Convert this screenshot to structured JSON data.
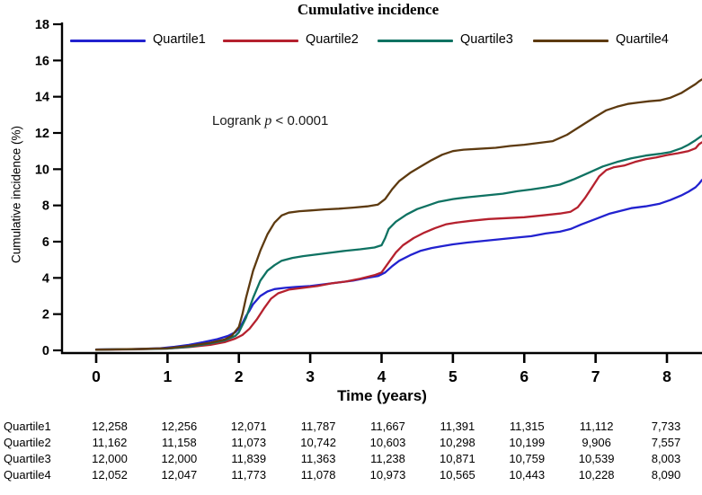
{
  "chart": {
    "title": "Cumulative incidence",
    "ylabel": "Cumulative incidence (%)",
    "xlabel": "Time (years)",
    "annotation": {
      "prefix": "Logrank ",
      "italic": "p",
      "suffix": " < 0.0001"
    }
  },
  "chart_data": {
    "type": "line",
    "title": "Cumulative incidence",
    "xlabel": "Time (years)",
    "ylabel": "Cumulative incidence (%)",
    "xlim": [
      0,
      8.5
    ],
    "ylim": [
      0,
      18
    ],
    "x_ticks": [
      0,
      1,
      2,
      3,
      4,
      5,
      6,
      7,
      8
    ],
    "y_ticks": [
      0,
      2,
      4,
      6,
      8,
      10,
      12,
      14,
      16,
      18
    ],
    "grid": "off",
    "legend_position": "top-inside",
    "annotation": "Logrank p < 0.0001",
    "series": [
      {
        "name": "Quartile1",
        "color": "#2222cf",
        "points": [
          [
            0,
            0.05
          ],
          [
            0.5,
            0.07
          ],
          [
            0.9,
            0.12
          ],
          [
            1.1,
            0.2
          ],
          [
            1.3,
            0.3
          ],
          [
            1.5,
            0.45
          ],
          [
            1.7,
            0.62
          ],
          [
            1.85,
            0.8
          ],
          [
            1.95,
            1.0
          ],
          [
            2.0,
            1.2
          ],
          [
            2.05,
            1.5
          ],
          [
            2.1,
            1.9
          ],
          [
            2.15,
            2.2
          ],
          [
            2.2,
            2.55
          ],
          [
            2.3,
            3.0
          ],
          [
            2.4,
            3.25
          ],
          [
            2.5,
            3.38
          ],
          [
            2.65,
            3.45
          ],
          [
            2.8,
            3.5
          ],
          [
            3.0,
            3.55
          ],
          [
            3.2,
            3.65
          ],
          [
            3.4,
            3.75
          ],
          [
            3.6,
            3.85
          ],
          [
            3.8,
            4.0
          ],
          [
            3.95,
            4.1
          ],
          [
            4.05,
            4.3
          ],
          [
            4.15,
            4.65
          ],
          [
            4.25,
            4.95
          ],
          [
            4.4,
            5.25
          ],
          [
            4.55,
            5.5
          ],
          [
            4.7,
            5.65
          ],
          [
            4.85,
            5.75
          ],
          [
            5.0,
            5.85
          ],
          [
            5.2,
            5.95
          ],
          [
            5.45,
            6.05
          ],
          [
            5.7,
            6.15
          ],
          [
            5.95,
            6.25
          ],
          [
            6.1,
            6.3
          ],
          [
            6.3,
            6.45
          ],
          [
            6.5,
            6.55
          ],
          [
            6.65,
            6.7
          ],
          [
            6.8,
            6.95
          ],
          [
            7.0,
            7.25
          ],
          [
            7.2,
            7.55
          ],
          [
            7.35,
            7.7
          ],
          [
            7.5,
            7.85
          ],
          [
            7.7,
            7.95
          ],
          [
            7.9,
            8.1
          ],
          [
            8.05,
            8.3
          ],
          [
            8.2,
            8.55
          ],
          [
            8.3,
            8.75
          ],
          [
            8.4,
            9.0
          ],
          [
            8.45,
            9.2
          ],
          [
            8.49,
            9.4
          ]
        ]
      },
      {
        "name": "Quartile2",
        "color": "#b5212e",
        "points": [
          [
            0,
            0.03
          ],
          [
            0.6,
            0.06
          ],
          [
            1.0,
            0.1
          ],
          [
            1.3,
            0.18
          ],
          [
            1.6,
            0.3
          ],
          [
            1.8,
            0.45
          ],
          [
            1.95,
            0.65
          ],
          [
            2.05,
            0.85
          ],
          [
            2.15,
            1.2
          ],
          [
            2.25,
            1.7
          ],
          [
            2.35,
            2.3
          ],
          [
            2.45,
            2.85
          ],
          [
            2.55,
            3.15
          ],
          [
            2.7,
            3.35
          ],
          [
            2.9,
            3.45
          ],
          [
            3.1,
            3.55
          ],
          [
            3.3,
            3.7
          ],
          [
            3.5,
            3.8
          ],
          [
            3.7,
            3.95
          ],
          [
            3.9,
            4.15
          ],
          [
            4.0,
            4.3
          ],
          [
            4.1,
            4.85
          ],
          [
            4.2,
            5.4
          ],
          [
            4.3,
            5.8
          ],
          [
            4.45,
            6.2
          ],
          [
            4.6,
            6.5
          ],
          [
            4.75,
            6.75
          ],
          [
            4.9,
            6.95
          ],
          [
            5.05,
            7.05
          ],
          [
            5.25,
            7.15
          ],
          [
            5.5,
            7.25
          ],
          [
            5.75,
            7.3
          ],
          [
            6.0,
            7.35
          ],
          [
            6.25,
            7.45
          ],
          [
            6.5,
            7.55
          ],
          [
            6.65,
            7.65
          ],
          [
            6.75,
            7.9
          ],
          [
            6.85,
            8.4
          ],
          [
            6.95,
            9.0
          ],
          [
            7.05,
            9.6
          ],
          [
            7.15,
            9.95
          ],
          [
            7.25,
            10.1
          ],
          [
            7.4,
            10.2
          ],
          [
            7.55,
            10.4
          ],
          [
            7.7,
            10.55
          ],
          [
            7.85,
            10.65
          ],
          [
            8.0,
            10.78
          ],
          [
            8.15,
            10.88
          ],
          [
            8.3,
            11.0
          ],
          [
            8.4,
            11.15
          ],
          [
            8.45,
            11.38
          ],
          [
            8.49,
            11.48
          ]
        ]
      },
      {
        "name": "Quartile3",
        "color": "#0f7262",
        "points": [
          [
            0,
            0.04
          ],
          [
            0.6,
            0.07
          ],
          [
            1.0,
            0.1
          ],
          [
            1.3,
            0.2
          ],
          [
            1.6,
            0.38
          ],
          [
            1.8,
            0.55
          ],
          [
            1.95,
            0.8
          ],
          [
            2.0,
            1.0
          ],
          [
            2.1,
            1.8
          ],
          [
            2.2,
            2.9
          ],
          [
            2.3,
            3.85
          ],
          [
            2.4,
            4.4
          ],
          [
            2.5,
            4.7
          ],
          [
            2.6,
            4.95
          ],
          [
            2.75,
            5.1
          ],
          [
            2.9,
            5.2
          ],
          [
            3.1,
            5.3
          ],
          [
            3.3,
            5.4
          ],
          [
            3.5,
            5.5
          ],
          [
            3.7,
            5.58
          ],
          [
            3.9,
            5.68
          ],
          [
            4.0,
            5.8
          ],
          [
            4.05,
            6.2
          ],
          [
            4.1,
            6.7
          ],
          [
            4.2,
            7.1
          ],
          [
            4.35,
            7.5
          ],
          [
            4.5,
            7.8
          ],
          [
            4.65,
            8.0
          ],
          [
            4.8,
            8.2
          ],
          [
            5.0,
            8.35
          ],
          [
            5.2,
            8.45
          ],
          [
            5.45,
            8.55
          ],
          [
            5.7,
            8.65
          ],
          [
            5.9,
            8.78
          ],
          [
            6.1,
            8.88
          ],
          [
            6.3,
            9.0
          ],
          [
            6.5,
            9.15
          ],
          [
            6.7,
            9.45
          ],
          [
            6.9,
            9.8
          ],
          [
            7.1,
            10.15
          ],
          [
            7.3,
            10.4
          ],
          [
            7.5,
            10.6
          ],
          [
            7.7,
            10.75
          ],
          [
            7.9,
            10.85
          ],
          [
            8.05,
            10.95
          ],
          [
            8.2,
            11.15
          ],
          [
            8.3,
            11.35
          ],
          [
            8.4,
            11.6
          ],
          [
            8.49,
            11.85
          ]
        ]
      },
      {
        "name": "Quartile4",
        "color": "#5d3a10",
        "points": [
          [
            0,
            0.04
          ],
          [
            0.6,
            0.08
          ],
          [
            1.0,
            0.12
          ],
          [
            1.3,
            0.25
          ],
          [
            1.6,
            0.42
          ],
          [
            1.8,
            0.6
          ],
          [
            1.9,
            0.8
          ],
          [
            2.0,
            1.3
          ],
          [
            2.05,
            2.0
          ],
          [
            2.1,
            2.9
          ],
          [
            2.2,
            4.4
          ],
          [
            2.3,
            5.5
          ],
          [
            2.4,
            6.4
          ],
          [
            2.5,
            7.05
          ],
          [
            2.6,
            7.45
          ],
          [
            2.7,
            7.6
          ],
          [
            2.85,
            7.68
          ],
          [
            3.0,
            7.72
          ],
          [
            3.2,
            7.78
          ],
          [
            3.4,
            7.82
          ],
          [
            3.6,
            7.88
          ],
          [
            3.8,
            7.95
          ],
          [
            3.95,
            8.05
          ],
          [
            4.05,
            8.35
          ],
          [
            4.15,
            8.9
          ],
          [
            4.25,
            9.35
          ],
          [
            4.4,
            9.8
          ],
          [
            4.55,
            10.15
          ],
          [
            4.7,
            10.5
          ],
          [
            4.85,
            10.8
          ],
          [
            5.0,
            11.0
          ],
          [
            5.15,
            11.08
          ],
          [
            5.35,
            11.12
          ],
          [
            5.6,
            11.18
          ],
          [
            5.8,
            11.28
          ],
          [
            6.0,
            11.35
          ],
          [
            6.2,
            11.45
          ],
          [
            6.4,
            11.55
          ],
          [
            6.6,
            11.9
          ],
          [
            6.8,
            12.4
          ],
          [
            7.0,
            12.9
          ],
          [
            7.15,
            13.25
          ],
          [
            7.3,
            13.45
          ],
          [
            7.45,
            13.6
          ],
          [
            7.6,
            13.68
          ],
          [
            7.75,
            13.75
          ],
          [
            7.9,
            13.8
          ],
          [
            8.05,
            13.95
          ],
          [
            8.2,
            14.2
          ],
          [
            8.3,
            14.45
          ],
          [
            8.4,
            14.7
          ],
          [
            8.45,
            14.85
          ],
          [
            8.49,
            14.95
          ]
        ]
      }
    ],
    "risk_table": {
      "rows": [
        {
          "label": "Quartile1",
          "values": [
            "12,258",
            "12,256",
            "12,071",
            "11,787",
            "11,667",
            "11,391",
            "11,315",
            "11,112",
            "7,733"
          ]
        },
        {
          "label": "Quartile2",
          "values": [
            "11,162",
            "11,158",
            "11,073",
            "10,742",
            "10,603",
            "10,298",
            "10,199",
            "9,906",
            "7,557"
          ]
        },
        {
          "label": "Quartile3",
          "values": [
            "12,000",
            "12,000",
            "11,839",
            "11,363",
            "11,238",
            "10,871",
            "10,759",
            "10,539",
            "8,003"
          ]
        },
        {
          "label": "Quartile4",
          "values": [
            "12,052",
            "12,047",
            "11,773",
            "11,078",
            "10,973",
            "10,565",
            "10,443",
            "10,228",
            "8,090"
          ]
        }
      ]
    }
  }
}
